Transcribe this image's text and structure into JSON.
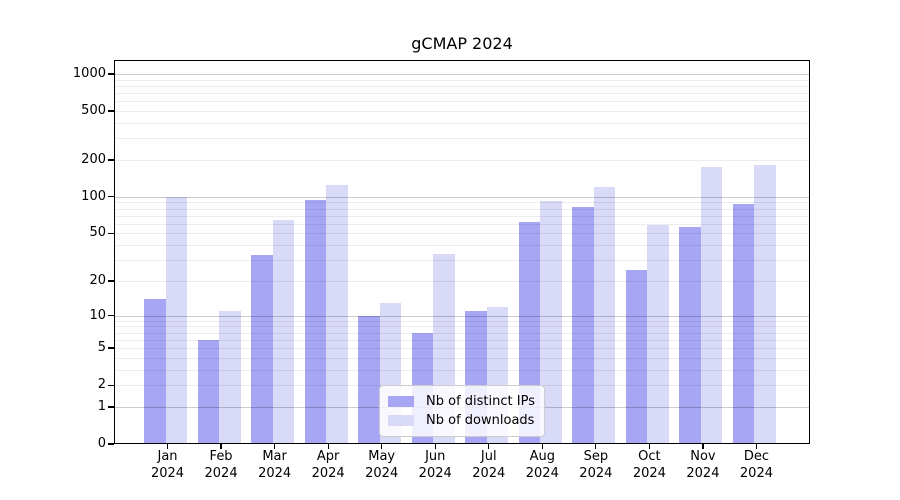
{
  "chart_data": {
    "type": "bar",
    "title": "gCMAP 2024",
    "categories": [
      "Jan",
      "Feb",
      "Mar",
      "Apr",
      "May",
      "Jun",
      "Jul",
      "Aug",
      "Sep",
      "Oct",
      "Nov",
      "Dec"
    ],
    "x_year": "2024",
    "series": [
      {
        "name": "Nb of distinct IPs",
        "color": "#a6a6f4",
        "values": [
          14,
          6,
          33,
          95,
          10,
          7,
          11,
          62,
          83,
          25,
          57,
          87
        ]
      },
      {
        "name": "Nb of downloads",
        "color": "#d9d9f8",
        "values": [
          100,
          11,
          64,
          126,
          13,
          34,
          12,
          92,
          121,
          59,
          176,
          181
        ]
      }
    ],
    "y_axis": {
      "ticks": [
        0,
        1,
        2,
        5,
        10,
        20,
        50,
        100,
        200,
        500,
        1000
      ],
      "scale": "log10(1+v)",
      "ylim": [
        0,
        1000
      ]
    },
    "grid": true,
    "legend_position": "lower center",
    "colors": {
      "major_gridline": "#cccccc",
      "minor_gridline": "#ececec",
      "axis": "#000000",
      "background": "#ffffff"
    }
  }
}
